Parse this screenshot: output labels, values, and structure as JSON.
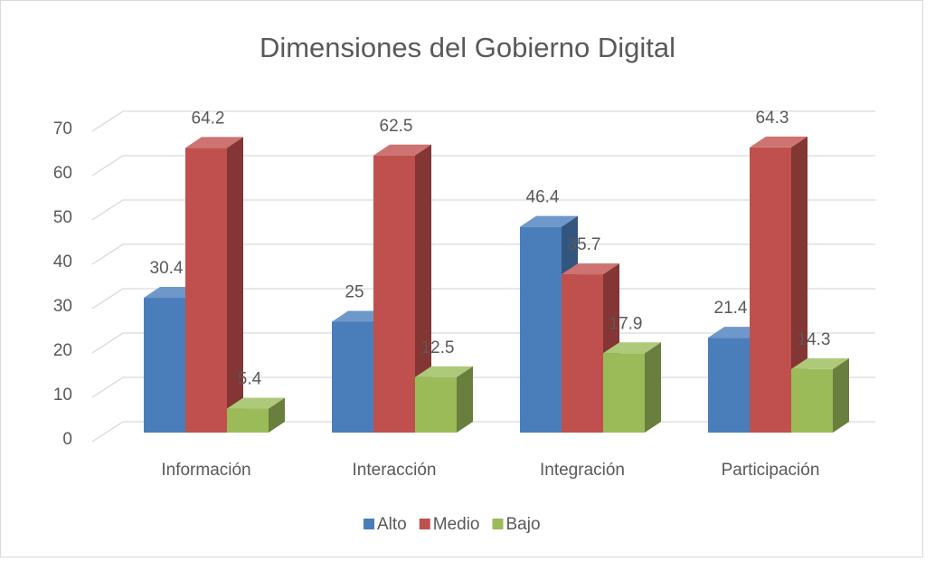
{
  "chart_data": {
    "type": "bar3d",
    "title": "Dimensiones del Gobierno Digital",
    "categories": [
      "Información",
      "Interacción",
      "Integración",
      "Participación"
    ],
    "series": [
      {
        "name": "Alto",
        "color": "#4a7ebb",
        "values": [
          30.4,
          25,
          46.4,
          21.4
        ]
      },
      {
        "name": "Medio",
        "color": "#c0504d",
        "values": [
          64.2,
          62.5,
          35.7,
          64.3
        ]
      },
      {
        "name": "Bajo",
        "color": "#9bbb59",
        "values": [
          5.4,
          12.5,
          17.9,
          14.3
        ]
      }
    ],
    "ylim": [
      0,
      70
    ],
    "yticks": [
      0,
      10,
      20,
      30,
      40,
      50,
      60,
      70
    ],
    "grid": true,
    "legend": "bottom"
  }
}
